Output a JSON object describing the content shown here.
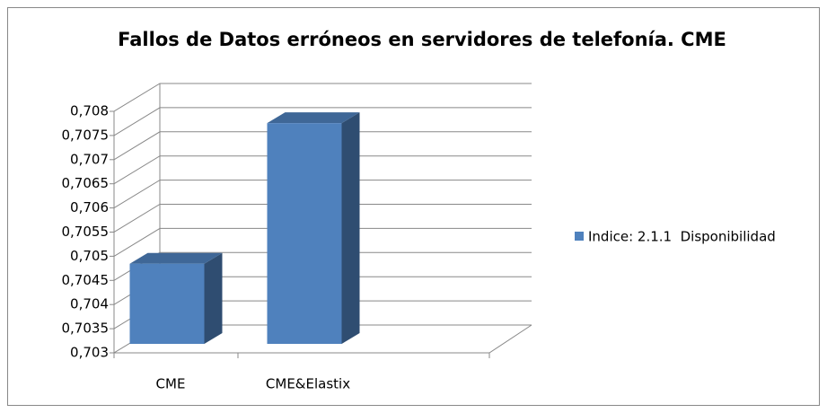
{
  "chart_data": {
    "type": "bar3d",
    "title": "Fallos de Datos erróneos en servidores de telefonía. CME",
    "categories": [
      "CME",
      "CME&Elastix"
    ],
    "series": [
      {
        "name": "Indice: 2.1.1  Disponibilidad",
        "color": "#4f81bd",
        "values": [
          0.70466,
          0.70757
        ]
      }
    ],
    "ylim": [
      0.703,
      0.708
    ],
    "yticks": [
      {
        "value": 0.703,
        "label": "0,703"
      },
      {
        "value": 0.7035,
        "label": "0,7035"
      },
      {
        "value": 0.704,
        "label": "0,704"
      },
      {
        "value": 0.7045,
        "label": "0,7045"
      },
      {
        "value": 0.705,
        "label": "0,705"
      },
      {
        "value": 0.7055,
        "label": "0,7055"
      },
      {
        "value": 0.706,
        "label": "0,706"
      },
      {
        "value": 0.7065,
        "label": "0,7065"
      },
      {
        "value": 0.707,
        "label": "0,707"
      },
      {
        "value": 0.7075,
        "label": "0,7075"
      },
      {
        "value": 0.708,
        "label": "0,708"
      }
    ],
    "grid": true,
    "legend": "right"
  }
}
